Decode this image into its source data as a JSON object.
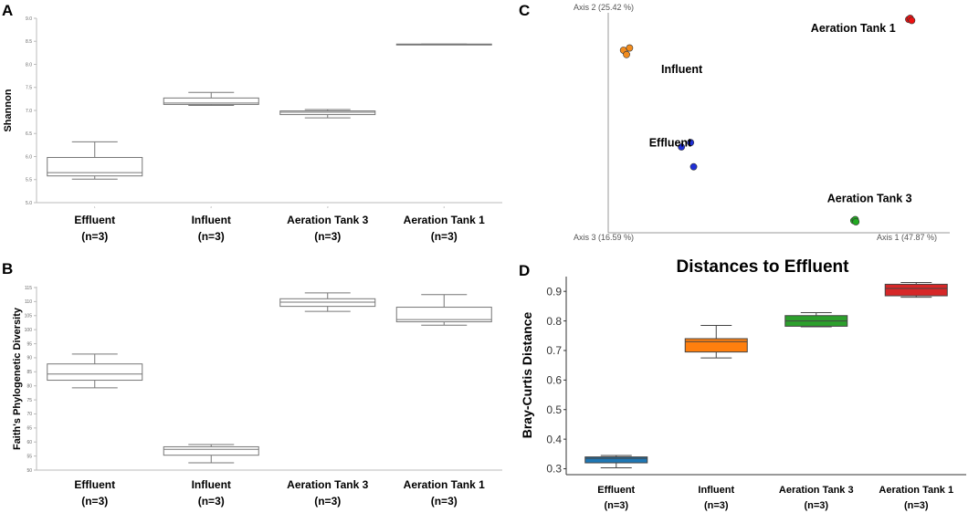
{
  "panels": {
    "A": {
      "letter": "A"
    },
    "B": {
      "letter": "B"
    },
    "C": {
      "letter": "C"
    },
    "D": {
      "letter": "D"
    }
  },
  "chart_data": [
    {
      "panel": "A",
      "type": "box",
      "title": "",
      "ylabel": "Shannon",
      "ylim": [
        5.0,
        9.0
      ],
      "yticks": [
        5.0,
        5.5,
        6.0,
        6.5,
        7.0,
        7.5,
        8.0,
        8.5,
        9.0
      ],
      "ytick_labels": [
        "5.0",
        "5.5",
        "6.0",
        "6.5",
        "7.0",
        "7.5",
        "8.0",
        "8.5",
        "9.0"
      ],
      "categories": [
        "Effluent",
        "Influent",
        "Aeration Tank 3",
        "Aeration Tank 1"
      ],
      "category_sub": [
        "(n=3)",
        "(n=3)",
        "(n=3)",
        "(n=3)"
      ],
      "category_marks": [
        "1",
        "2",
        "3",
        "4"
      ],
      "boxes": [
        {
          "whisker_low": 5.51,
          "q1": 5.58,
          "median": 5.65,
          "q3": 5.98,
          "whisker_high": 6.32
        },
        {
          "whisker_low": 7.11,
          "q1": 7.13,
          "median": 7.16,
          "q3": 7.27,
          "whisker_high": 7.39
        },
        {
          "whisker_low": 6.84,
          "q1": 6.91,
          "median": 6.96,
          "q3": 6.99,
          "whisker_high": 7.02
        },
        {
          "whisker_low": 8.43,
          "q1": 8.43,
          "median": 8.43,
          "q3": 8.44,
          "whisker_high": 8.44
        }
      ],
      "box_fill": "#ffffff",
      "box_stroke": "#777777"
    },
    {
      "panel": "B",
      "type": "box",
      "title": "",
      "ylabel": "Faith's Phylogenetic Diversity",
      "ylim": [
        50,
        115
      ],
      "yticks": [
        50,
        55,
        60,
        65,
        70,
        75,
        80,
        85,
        90,
        95,
        100,
        105,
        110,
        115
      ],
      "ytick_labels": [
        "50",
        "55",
        "60",
        "65",
        "70",
        "75",
        "80",
        "85",
        "90",
        "95",
        "100",
        "105",
        "110",
        "115"
      ],
      "categories": [
        "Effluent",
        "Influent",
        "Aeration Tank 3",
        "Aeration Tank 1"
      ],
      "category_sub": [
        "(n=3)",
        "(n=3)",
        "(n=3)",
        "(n=3)"
      ],
      "category_marks": [
        "",
        "",
        "",
        ""
      ],
      "boxes": [
        {
          "whisker_low": 79.3,
          "q1": 82.0,
          "median": 84.2,
          "q3": 87.8,
          "whisker_high": 91.3
        },
        {
          "whisker_low": 52.6,
          "q1": 55.3,
          "median": 57.4,
          "q3": 58.3,
          "whisker_high": 59.1
        },
        {
          "whisker_low": 106.5,
          "q1": 108.3,
          "median": 109.8,
          "q3": 111.0,
          "whisker_high": 113.1
        },
        {
          "whisker_low": 101.6,
          "q1": 102.8,
          "median": 103.6,
          "q3": 108.0,
          "whisker_high": 112.5
        }
      ],
      "box_fill": "#ffffff",
      "box_stroke": "#777777"
    },
    {
      "panel": "C",
      "type": "scatter",
      "title": "",
      "axis_labels": {
        "x": "Axis 1 (47.87 %)",
        "y": "Axis 2 (25.42 %)",
        "z": "Axis 3 (16.59 %)"
      },
      "xlim": [
        0,
        1
      ],
      "ylim": [
        0,
        1
      ],
      "series": [
        {
          "name": "Influent",
          "color": "#f28c1e",
          "points": [
            [
              0.05,
              0.83
            ],
            [
              0.06,
              0.81
            ],
            [
              0.07,
              0.84
            ]
          ]
        },
        {
          "name": "Effluent",
          "color": "#1f2fd6",
          "points": [
            [
              0.24,
              0.39
            ],
            [
              0.27,
              0.41
            ],
            [
              0.28,
              0.3
            ]
          ]
        },
        {
          "name": "Aeration Tank 1",
          "color": "#ee1111",
          "points": [
            [
              0.985,
              0.97
            ],
            [
              0.99,
              0.975
            ],
            [
              0.995,
              0.965
            ]
          ]
        },
        {
          "name": "Aeration Tank 3",
          "color": "#22aa22",
          "points": [
            [
              0.805,
              0.055
            ],
            [
              0.81,
              0.06
            ],
            [
              0.812,
              0.05
            ]
          ]
        }
      ]
    },
    {
      "panel": "D",
      "type": "box",
      "title": "Distances to Effluent",
      "ylabel": "Bray-Curtis Distance",
      "ylim": [
        0.28,
        0.95
      ],
      "yticks": [
        0.3,
        0.4,
        0.5,
        0.6,
        0.7,
        0.8,
        0.9
      ],
      "ytick_labels": [
        "0.3",
        "0.4",
        "0.5",
        "0.6",
        "0.7",
        "0.8",
        "0.9"
      ],
      "categories": [
        "Effluent",
        "Influent",
        "Aeration Tank 3",
        "Aeration Tank 1"
      ],
      "category_sub": [
        "(n=3)",
        "(n=3)",
        "(n=3)",
        "(n=3)"
      ],
      "category_marks": [
        "",
        "",
        "",
        ""
      ],
      "boxes": [
        {
          "whisker_low": 0.303,
          "q1": 0.32,
          "median": 0.335,
          "q3": 0.34,
          "whisker_high": 0.345
        },
        {
          "whisker_low": 0.675,
          "q1": 0.695,
          "median": 0.73,
          "q3": 0.74,
          "whisker_high": 0.785
        },
        {
          "whisker_low": 0.78,
          "q1": 0.782,
          "median": 0.8,
          "q3": 0.818,
          "whisker_high": 0.828
        },
        {
          "whisker_low": 0.88,
          "q1": 0.885,
          "median": 0.91,
          "q3": 0.924,
          "whisker_high": 0.93
        }
      ],
      "colors": [
        "#1f77b4",
        "#ff7f0e",
        "#2ca02c",
        "#d62728"
      ]
    }
  ]
}
